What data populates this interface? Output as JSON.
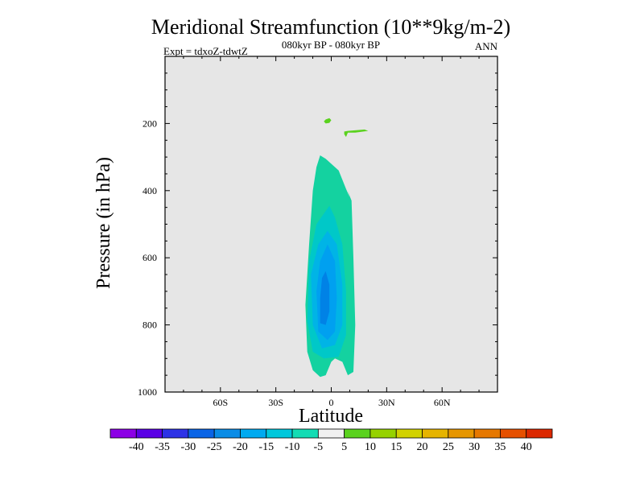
{
  "chart_data": {
    "type": "contour",
    "title": "Meridional Streamfunction (10**9kg/m-2)",
    "subtitle_left": "Expt = tdxoZ-tdwtZ",
    "subtitle_center": "080kyr BP - 080kyr BP",
    "subtitle_right": "ANN",
    "xlabel": "Latitude",
    "ylabel": "Pressure (in hPa)",
    "xlim": [
      -90,
      90
    ],
    "ylim": [
      1000,
      0
    ],
    "x_ticks": [
      -60,
      -30,
      0,
      30,
      60
    ],
    "x_tick_labels": [
      "60S",
      "30S",
      "0",
      "30N",
      "60N"
    ],
    "y_ticks": [
      200,
      400,
      600,
      800,
      1000
    ],
    "y_tick_labels": [
      "200",
      "400",
      "600",
      "800",
      "1000"
    ],
    "background_color": "#e6e6e6",
    "contour_regions": [
      {
        "name": "upper-positive-blob-a",
        "level": "5 to 10",
        "color": "#5ad21e",
        "points": [
          [
            -3,
            188
          ],
          [
            -1,
            184
          ],
          [
            0,
            190
          ],
          [
            -1,
            198
          ],
          [
            -3,
            200
          ],
          [
            -4,
            194
          ]
        ]
      },
      {
        "name": "upper-positive-blob-b",
        "level": "5 to 10",
        "color": "#5ad21e",
        "points": [
          [
            7,
            224
          ],
          [
            9,
            222
          ],
          [
            18,
            218
          ],
          [
            20,
            222
          ],
          [
            13,
            227
          ],
          [
            9,
            227
          ],
          [
            8,
            240
          ],
          [
            7,
            232
          ]
        ]
      },
      {
        "name": "cell-outer",
        "level": "-10 to -5",
        "color": "#14d2a0",
        "points": [
          [
            -6,
            295
          ],
          [
            -3,
            305
          ],
          [
            4,
            340
          ],
          [
            8,
            395
          ],
          [
            10,
            420
          ],
          [
            9,
            402
          ],
          [
            11,
            430
          ],
          [
            12,
            600
          ],
          [
            13,
            800
          ],
          [
            12,
            940
          ],
          [
            9,
            950
          ],
          [
            6,
            910
          ],
          [
            2,
            900
          ],
          [
            0,
            910
          ],
          [
            -3,
            950
          ],
          [
            -6,
            955
          ],
          [
            -10,
            935
          ],
          [
            -13,
            880
          ],
          [
            -14,
            740
          ],
          [
            -12,
            560
          ],
          [
            -10,
            400
          ],
          [
            -8,
            330
          ]
        ]
      },
      {
        "name": "cell-ring-2",
        "level": "-15 to -10",
        "color": "#00c8c8",
        "points": [
          [
            -1,
            445
          ],
          [
            2,
            480
          ],
          [
            6,
            560
          ],
          [
            8,
            700
          ],
          [
            8,
            830
          ],
          [
            4,
            895
          ],
          [
            -4,
            900
          ],
          [
            -10,
            880
          ],
          [
            -13,
            790
          ],
          [
            -12,
            610
          ],
          [
            -8,
            500
          ]
        ]
      },
      {
        "name": "cell-ring-3",
        "level": "-20 to -15",
        "color": "#00b4e6",
        "points": [
          [
            -2,
            520
          ],
          [
            3,
            560
          ],
          [
            6,
            680
          ],
          [
            6,
            800
          ],
          [
            2,
            860
          ],
          [
            -5,
            870
          ],
          [
            -10,
            800
          ],
          [
            -11,
            650
          ],
          [
            -7,
            560
          ]
        ]
      },
      {
        "name": "cell-ring-4",
        "level": "-25 to -20",
        "color": "#00a0f0",
        "points": [
          [
            -2,
            560
          ],
          [
            2,
            610
          ],
          [
            3,
            720
          ],
          [
            2,
            820
          ],
          [
            -2,
            845
          ],
          [
            -7,
            820
          ],
          [
            -8,
            700
          ],
          [
            -6,
            610
          ]
        ]
      },
      {
        "name": "cell-core",
        "level": "-30 to -25",
        "color": "#0082e6",
        "points": [
          [
            -3,
            640
          ],
          [
            -1,
            680
          ],
          [
            -1,
            760
          ],
          [
            -3,
            800
          ],
          [
            -6,
            795
          ],
          [
            -6,
            720
          ],
          [
            -5,
            660
          ]
        ]
      }
    ],
    "colorbar": {
      "colors": [
        "#8c00e6",
        "#5a00e6",
        "#2d32e6",
        "#0a64e6",
        "#0a8ce6",
        "#00aaf0",
        "#00c8dc",
        "#14dcb4",
        "#f0f0f0",
        "#5ad21e",
        "#96d200",
        "#d2d200",
        "#e6b400",
        "#e69600",
        "#e67800",
        "#e65000",
        "#dc2800"
      ],
      "labels": [
        "-40",
        "-35",
        "-30",
        "-25",
        "-20",
        "-15",
        "-10",
        "-5",
        "5",
        "10",
        "15",
        "20",
        "25",
        "30",
        "35",
        "40"
      ]
    }
  }
}
